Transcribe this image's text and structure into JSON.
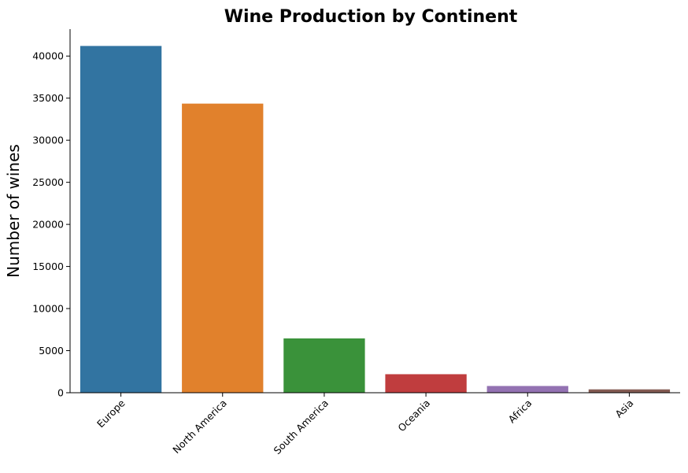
{
  "chart_data": {
    "type": "bar",
    "title": "Wine Production by Continent",
    "xlabel": "",
    "ylabel": "Number of wines",
    "categories": [
      "Europe",
      "North America",
      "South America",
      "Oceania",
      "Africa",
      "Asia"
    ],
    "values": [
      41200,
      34350,
      6450,
      2200,
      800,
      400
    ],
    "colors": [
      "#3274a1",
      "#e1812c",
      "#3a923a",
      "#c03d3e",
      "#9372b2",
      "#845b53"
    ],
    "yticks": [
      0,
      5000,
      10000,
      15000,
      20000,
      25000,
      30000,
      35000,
      40000
    ],
    "ylim": [
      0,
      43200
    ],
    "grid": false,
    "legend": "none"
  }
}
